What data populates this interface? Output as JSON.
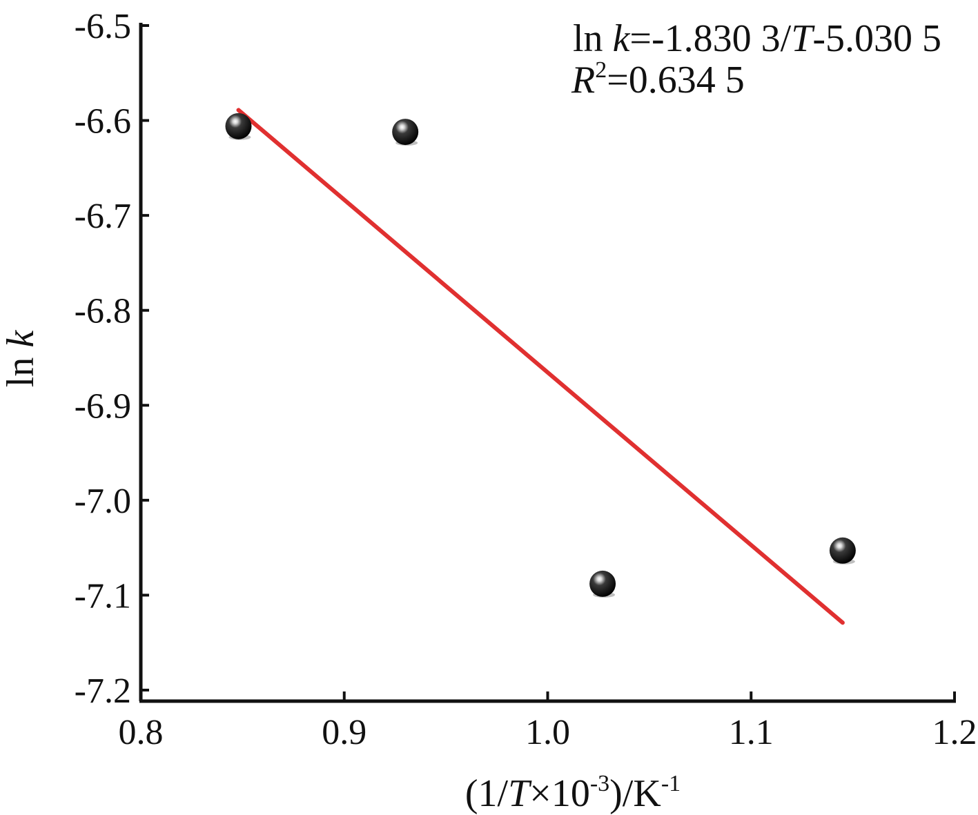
{
  "chart_data": {
    "type": "scatter",
    "title": "",
    "xlabel": {
      "prefix": "(1/",
      "var": "T",
      "mid": "×10",
      "exp": "-3",
      "close": ")/K",
      "unit_exp": "-1"
    },
    "ylabel": {
      "fn": "ln ",
      "var": "k"
    },
    "xlim": [
      0.8,
      1.2
    ],
    "ylim": [
      -7.2,
      -6.5
    ],
    "x_ticks": [
      "0.8",
      "0.9",
      "1.0",
      "1.1",
      "1.2"
    ],
    "y_ticks": [
      "-6.5",
      "-6.6",
      "-6.7",
      "-6.8",
      "-6.9",
      "-7.0",
      "-7.1",
      "-7.2"
    ],
    "grid": false,
    "legend": "none",
    "series": [
      {
        "kind": "points",
        "marker": "black-sphere",
        "x": [
          0.848,
          0.93,
          1.027,
          1.145
        ],
        "y": [
          -6.606,
          -6.612,
          -7.088,
          -7.053
        ]
      },
      {
        "kind": "fit-line",
        "color": "#e03030",
        "x": [
          0.848,
          1.145
        ],
        "y": [
          -6.589,
          -7.129
        ]
      }
    ],
    "annotation": {
      "eq_fn": "ln ",
      "eq_var": "k",
      "eq_mid": "=-1.830 3/",
      "eq_var2": "T",
      "eq_end": "-5.030 5",
      "r2_var": "R",
      "r2_exp": "2",
      "r2_val": "=0.634 5"
    }
  }
}
